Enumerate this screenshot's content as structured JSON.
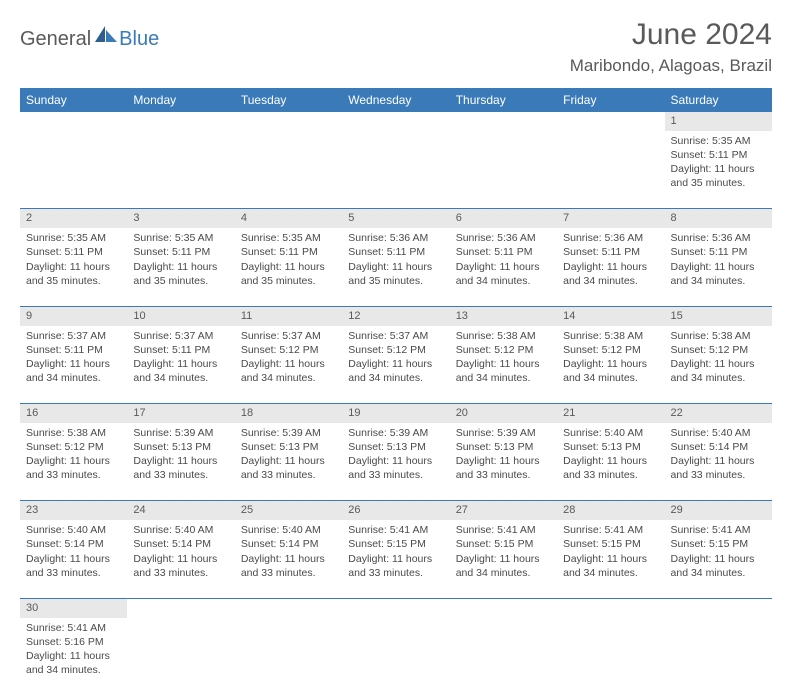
{
  "logo": {
    "text1": "General",
    "text2": "Blue"
  },
  "title": "June 2024",
  "location": "Maribondo, Alagoas, Brazil",
  "headers_color": "#3a7ab8",
  "days": [
    "Sunday",
    "Monday",
    "Tuesday",
    "Wednesday",
    "Thursday",
    "Friday",
    "Saturday"
  ],
  "weeks": [
    {
      "nums": [
        "",
        "",
        "",
        "",
        "",
        "",
        "1"
      ],
      "cells": [
        null,
        null,
        null,
        null,
        null,
        null,
        {
          "sunrise": "5:35 AM",
          "sunset": "5:11 PM",
          "daylight": "11 hours and 35 minutes."
        }
      ]
    },
    {
      "nums": [
        "2",
        "3",
        "4",
        "5",
        "6",
        "7",
        "8"
      ],
      "cells": [
        {
          "sunrise": "5:35 AM",
          "sunset": "5:11 PM",
          "daylight": "11 hours and 35 minutes."
        },
        {
          "sunrise": "5:35 AM",
          "sunset": "5:11 PM",
          "daylight": "11 hours and 35 minutes."
        },
        {
          "sunrise": "5:35 AM",
          "sunset": "5:11 PM",
          "daylight": "11 hours and 35 minutes."
        },
        {
          "sunrise": "5:36 AM",
          "sunset": "5:11 PM",
          "daylight": "11 hours and 35 minutes."
        },
        {
          "sunrise": "5:36 AM",
          "sunset": "5:11 PM",
          "daylight": "11 hours and 34 minutes."
        },
        {
          "sunrise": "5:36 AM",
          "sunset": "5:11 PM",
          "daylight": "11 hours and 34 minutes."
        },
        {
          "sunrise": "5:36 AM",
          "sunset": "5:11 PM",
          "daylight": "11 hours and 34 minutes."
        }
      ]
    },
    {
      "nums": [
        "9",
        "10",
        "11",
        "12",
        "13",
        "14",
        "15"
      ],
      "cells": [
        {
          "sunrise": "5:37 AM",
          "sunset": "5:11 PM",
          "daylight": "11 hours and 34 minutes."
        },
        {
          "sunrise": "5:37 AM",
          "sunset": "5:11 PM",
          "daylight": "11 hours and 34 minutes."
        },
        {
          "sunrise": "5:37 AM",
          "sunset": "5:12 PM",
          "daylight": "11 hours and 34 minutes."
        },
        {
          "sunrise": "5:37 AM",
          "sunset": "5:12 PM",
          "daylight": "11 hours and 34 minutes."
        },
        {
          "sunrise": "5:38 AM",
          "sunset": "5:12 PM",
          "daylight": "11 hours and 34 minutes."
        },
        {
          "sunrise": "5:38 AM",
          "sunset": "5:12 PM",
          "daylight": "11 hours and 34 minutes."
        },
        {
          "sunrise": "5:38 AM",
          "sunset": "5:12 PM",
          "daylight": "11 hours and 34 minutes."
        }
      ]
    },
    {
      "nums": [
        "16",
        "17",
        "18",
        "19",
        "20",
        "21",
        "22"
      ],
      "cells": [
        {
          "sunrise": "5:38 AM",
          "sunset": "5:12 PM",
          "daylight": "11 hours and 33 minutes."
        },
        {
          "sunrise": "5:39 AM",
          "sunset": "5:13 PM",
          "daylight": "11 hours and 33 minutes."
        },
        {
          "sunrise": "5:39 AM",
          "sunset": "5:13 PM",
          "daylight": "11 hours and 33 minutes."
        },
        {
          "sunrise": "5:39 AM",
          "sunset": "5:13 PM",
          "daylight": "11 hours and 33 minutes."
        },
        {
          "sunrise": "5:39 AM",
          "sunset": "5:13 PM",
          "daylight": "11 hours and 33 minutes."
        },
        {
          "sunrise": "5:40 AM",
          "sunset": "5:13 PM",
          "daylight": "11 hours and 33 minutes."
        },
        {
          "sunrise": "5:40 AM",
          "sunset": "5:14 PM",
          "daylight": "11 hours and 33 minutes."
        }
      ]
    },
    {
      "nums": [
        "23",
        "24",
        "25",
        "26",
        "27",
        "28",
        "29"
      ],
      "cells": [
        {
          "sunrise": "5:40 AM",
          "sunset": "5:14 PM",
          "daylight": "11 hours and 33 minutes."
        },
        {
          "sunrise": "5:40 AM",
          "sunset": "5:14 PM",
          "daylight": "11 hours and 33 minutes."
        },
        {
          "sunrise": "5:40 AM",
          "sunset": "5:14 PM",
          "daylight": "11 hours and 33 minutes."
        },
        {
          "sunrise": "5:41 AM",
          "sunset": "5:15 PM",
          "daylight": "11 hours and 33 minutes."
        },
        {
          "sunrise": "5:41 AM",
          "sunset": "5:15 PM",
          "daylight": "11 hours and 34 minutes."
        },
        {
          "sunrise": "5:41 AM",
          "sunset": "5:15 PM",
          "daylight": "11 hours and 34 minutes."
        },
        {
          "sunrise": "5:41 AM",
          "sunset": "5:15 PM",
          "daylight": "11 hours and 34 minutes."
        }
      ]
    },
    {
      "nums": [
        "30",
        "",
        "",
        "",
        "",
        "",
        ""
      ],
      "cells": [
        {
          "sunrise": "5:41 AM",
          "sunset": "5:16 PM",
          "daylight": "11 hours and 34 minutes."
        },
        null,
        null,
        null,
        null,
        null,
        null
      ]
    }
  ],
  "labels": {
    "sunrise": "Sunrise: ",
    "sunset": "Sunset: ",
    "daylight": "Daylight: "
  }
}
